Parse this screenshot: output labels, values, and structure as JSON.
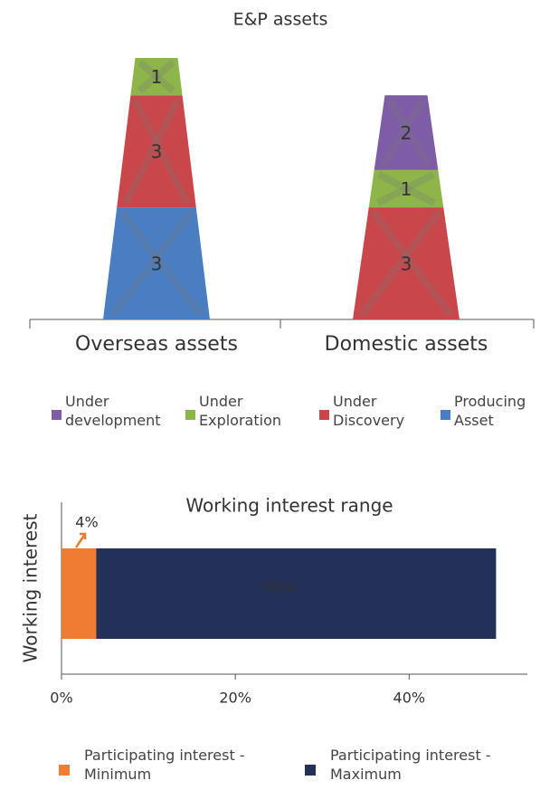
{
  "chart_data": [
    {
      "type": "tapered-stacked-bar",
      "title": "E&P assets",
      "categories": [
        "Overseas assets",
        "Domestic assets"
      ],
      "series": [
        {
          "name": "Under development",
          "color": "#7e5ca6",
          "values": [
            null,
            2
          ]
        },
        {
          "name": "Under Exploration",
          "color": "#8db54a",
          "values": [
            1,
            1
          ]
        },
        {
          "name": "Under Discovery",
          "color": "#c9474a",
          "values": [
            3,
            3
          ]
        },
        {
          "name": "Producing Asset",
          "color": "#4a7ec2",
          "values": [
            3,
            null
          ]
        }
      ],
      "ylim": [
        0,
        7
      ]
    },
    {
      "type": "hbar-overlap",
      "title": "Working interest range",
      "ylabel": "Working interest",
      "categories": [
        null
      ],
      "series": [
        {
          "name": "Participating interest - Minimum",
          "color": "#f07c33",
          "values": [
            4
          ],
          "value_labels": [
            "4%"
          ]
        },
        {
          "name": "Participating interest - Maximum",
          "color": "#233058",
          "values": [
            50
          ],
          "value_labels": [
            "50%"
          ]
        }
      ],
      "xlim": [
        0,
        53.6
      ],
      "xticks": [
        {
          "value": 0,
          "label": "0%"
        },
        {
          "value": 20,
          "label": "20%"
        },
        {
          "value": 40,
          "label": "40%"
        }
      ]
    }
  ]
}
